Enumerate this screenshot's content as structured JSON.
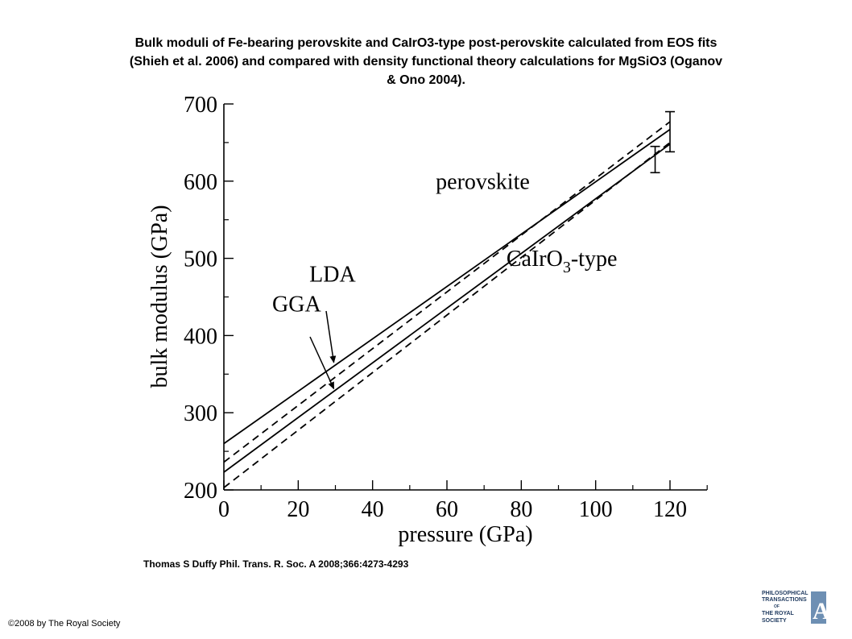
{
  "slide": {
    "title_lines": [
      "Bulk moduli of Fe-bearing perovskite and CaIrO3-type post-perovskite calculated from EOS fits",
      "(Shieh et al. 2006) and compared with density functional theory calculations for MgSiO3 (Oganov",
      "& Ono 2004)."
    ],
    "citation": "Thomas S Duffy Phil. Trans. R. Soc. A 2008;366:4273-4293",
    "copyright": "©2008 by The Royal Society",
    "logo_text": "PHILOSOPHICAL TRANSACTIONS OF THE ROYAL SOCIETY A"
  },
  "chart_data": {
    "type": "line",
    "xlabel": "pressure (GPa)",
    "ylabel": "bulk modulus (GPa)",
    "xlim": [
      0,
      130
    ],
    "ylim": [
      200,
      700
    ],
    "xticks": [
      0,
      20,
      40,
      60,
      80,
      100,
      120
    ],
    "yticks": [
      200,
      300,
      400,
      500,
      600,
      700
    ],
    "grid": false,
    "series": [
      {
        "label": "perovskite",
        "style": "solid",
        "x": [
          0,
          120
        ],
        "y": [
          260,
          667
        ]
      },
      {
        "label": "",
        "style": "dashed",
        "x": [
          0,
          120
        ],
        "y": [
          236,
          677
        ]
      },
      {
        "label": "CaIrO3-type",
        "style": "solid",
        "x": [
          0,
          120
        ],
        "y": [
          223,
          648
        ]
      },
      {
        "label": "",
        "style": "dashed",
        "x": [
          0,
          120
        ],
        "y": [
          203,
          650
        ]
      }
    ],
    "error_bars": [
      {
        "x": 120,
        "y_low": 638,
        "y_high": 690
      },
      {
        "x": 116,
        "y_low": 611,
        "y_high": 645
      }
    ],
    "annotations": [
      {
        "text": "perovskite",
        "x": 57,
        "y": 590
      },
      {
        "text": "CaIrO",
        "subscript": "3",
        "suffix": "-type",
        "x": 76,
        "y": 490
      },
      {
        "text": "LDA",
        "x": 23,
        "y": 470,
        "arrow_to": [
          30,
          362
        ]
      },
      {
        "text": "GGA",
        "x": 13,
        "y": 431,
        "arrow_to": [
          30,
          328
        ]
      }
    ]
  }
}
